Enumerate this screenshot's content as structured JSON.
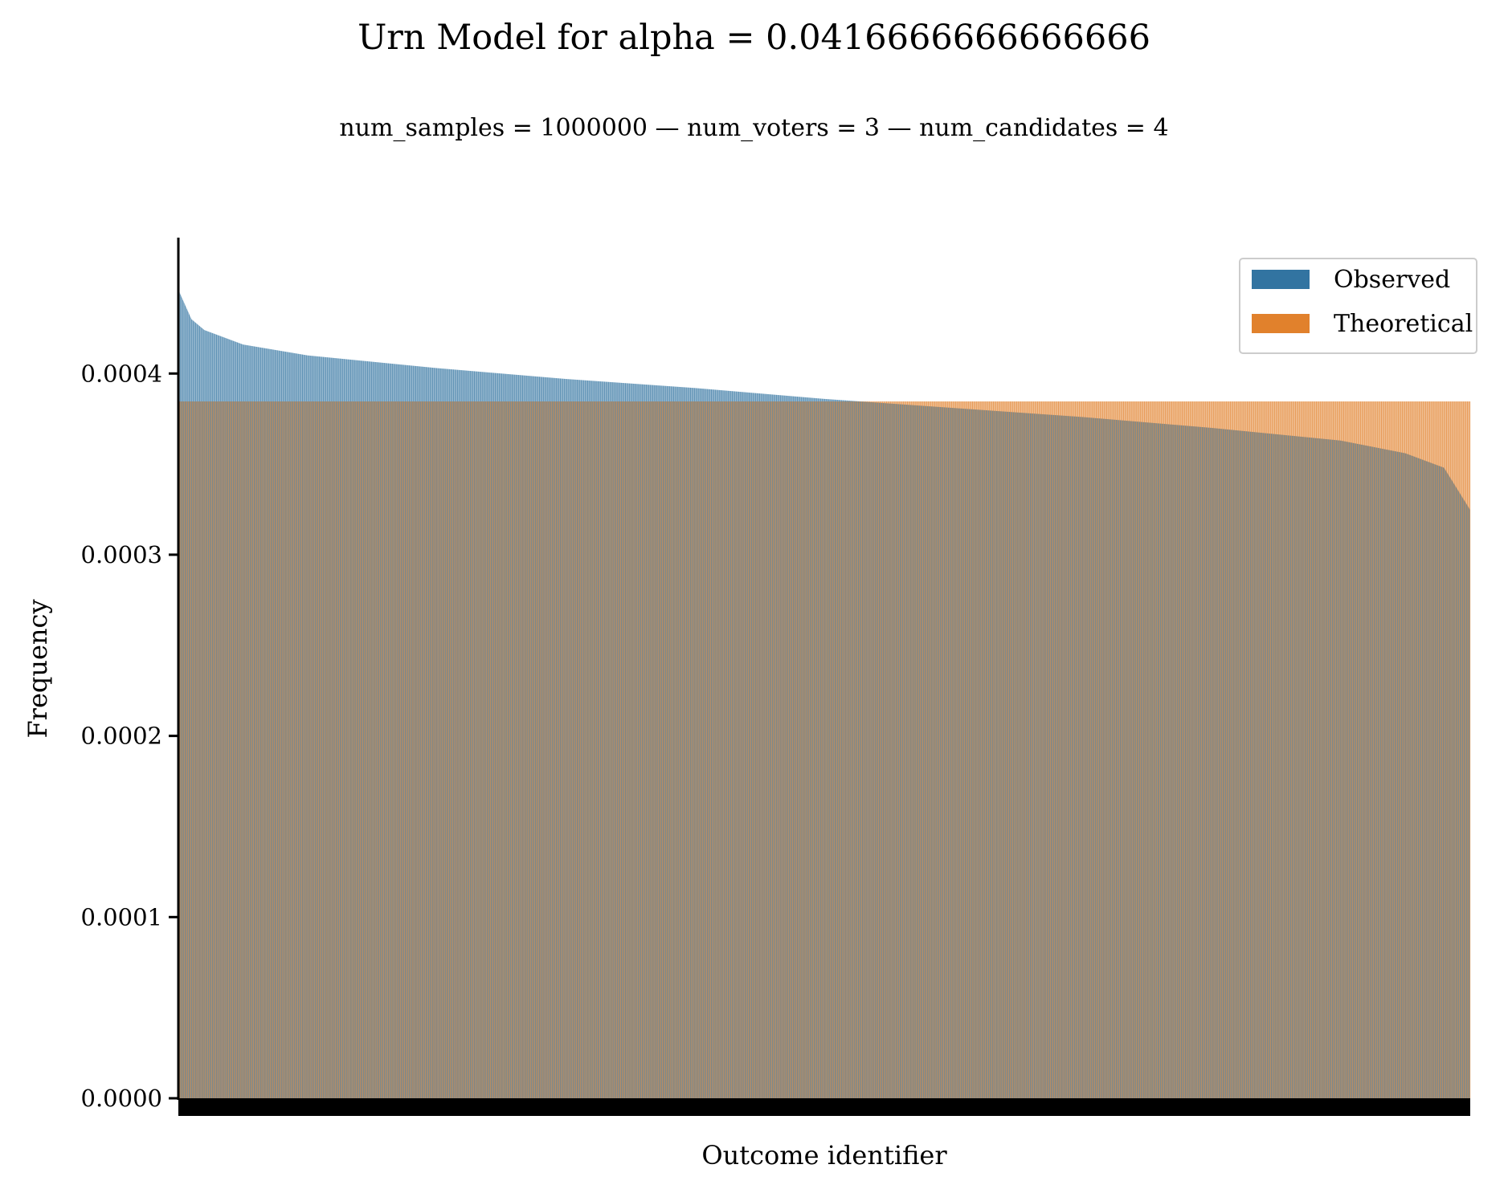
{
  "chart_data": {
    "type": "bar",
    "title": "Urn Model for alpha = 0.0416666666666666",
    "subtitle": "num_samples = 1000000  —  num_voters = 3  —  num_candidates = 4",
    "xlabel": "Outcome identifier",
    "ylabel": "Frequency",
    "ylim": [
      0,
      0.000475
    ],
    "yticks": [
      "0.0000",
      "0.0001",
      "0.0002",
      "0.0003",
      "0.0004"
    ],
    "ytick_values": [
      0,
      0.0001,
      0.0002,
      0.0003,
      0.0004
    ],
    "x_tick_labels_shown": false,
    "num_outcomes": 2600,
    "observed_sorted_descending": true,
    "observed_profile": {
      "positions": [
        0,
        0.01,
        0.02,
        0.05,
        0.1,
        0.2,
        0.3,
        0.4,
        0.5,
        0.6,
        0.7,
        0.8,
        0.9,
        0.95,
        0.98,
        1.0
      ],
      "values": [
        0.000446,
        0.00043,
        0.000424,
        0.000416,
        0.00041,
        0.000403,
        0.000397,
        0.000392,
        0.000386,
        0.000381,
        0.000376,
        0.00037,
        0.000363,
        0.000356,
        0.000348,
        0.000325
      ]
    },
    "theoretical_value": 0.0003846,
    "legend": {
      "position": "top-right"
    },
    "series": [
      {
        "name": "Observed",
        "color": "#3274a1"
      },
      {
        "name": "Theoretical",
        "color": "#e1812c"
      }
    ],
    "grid": false
  }
}
